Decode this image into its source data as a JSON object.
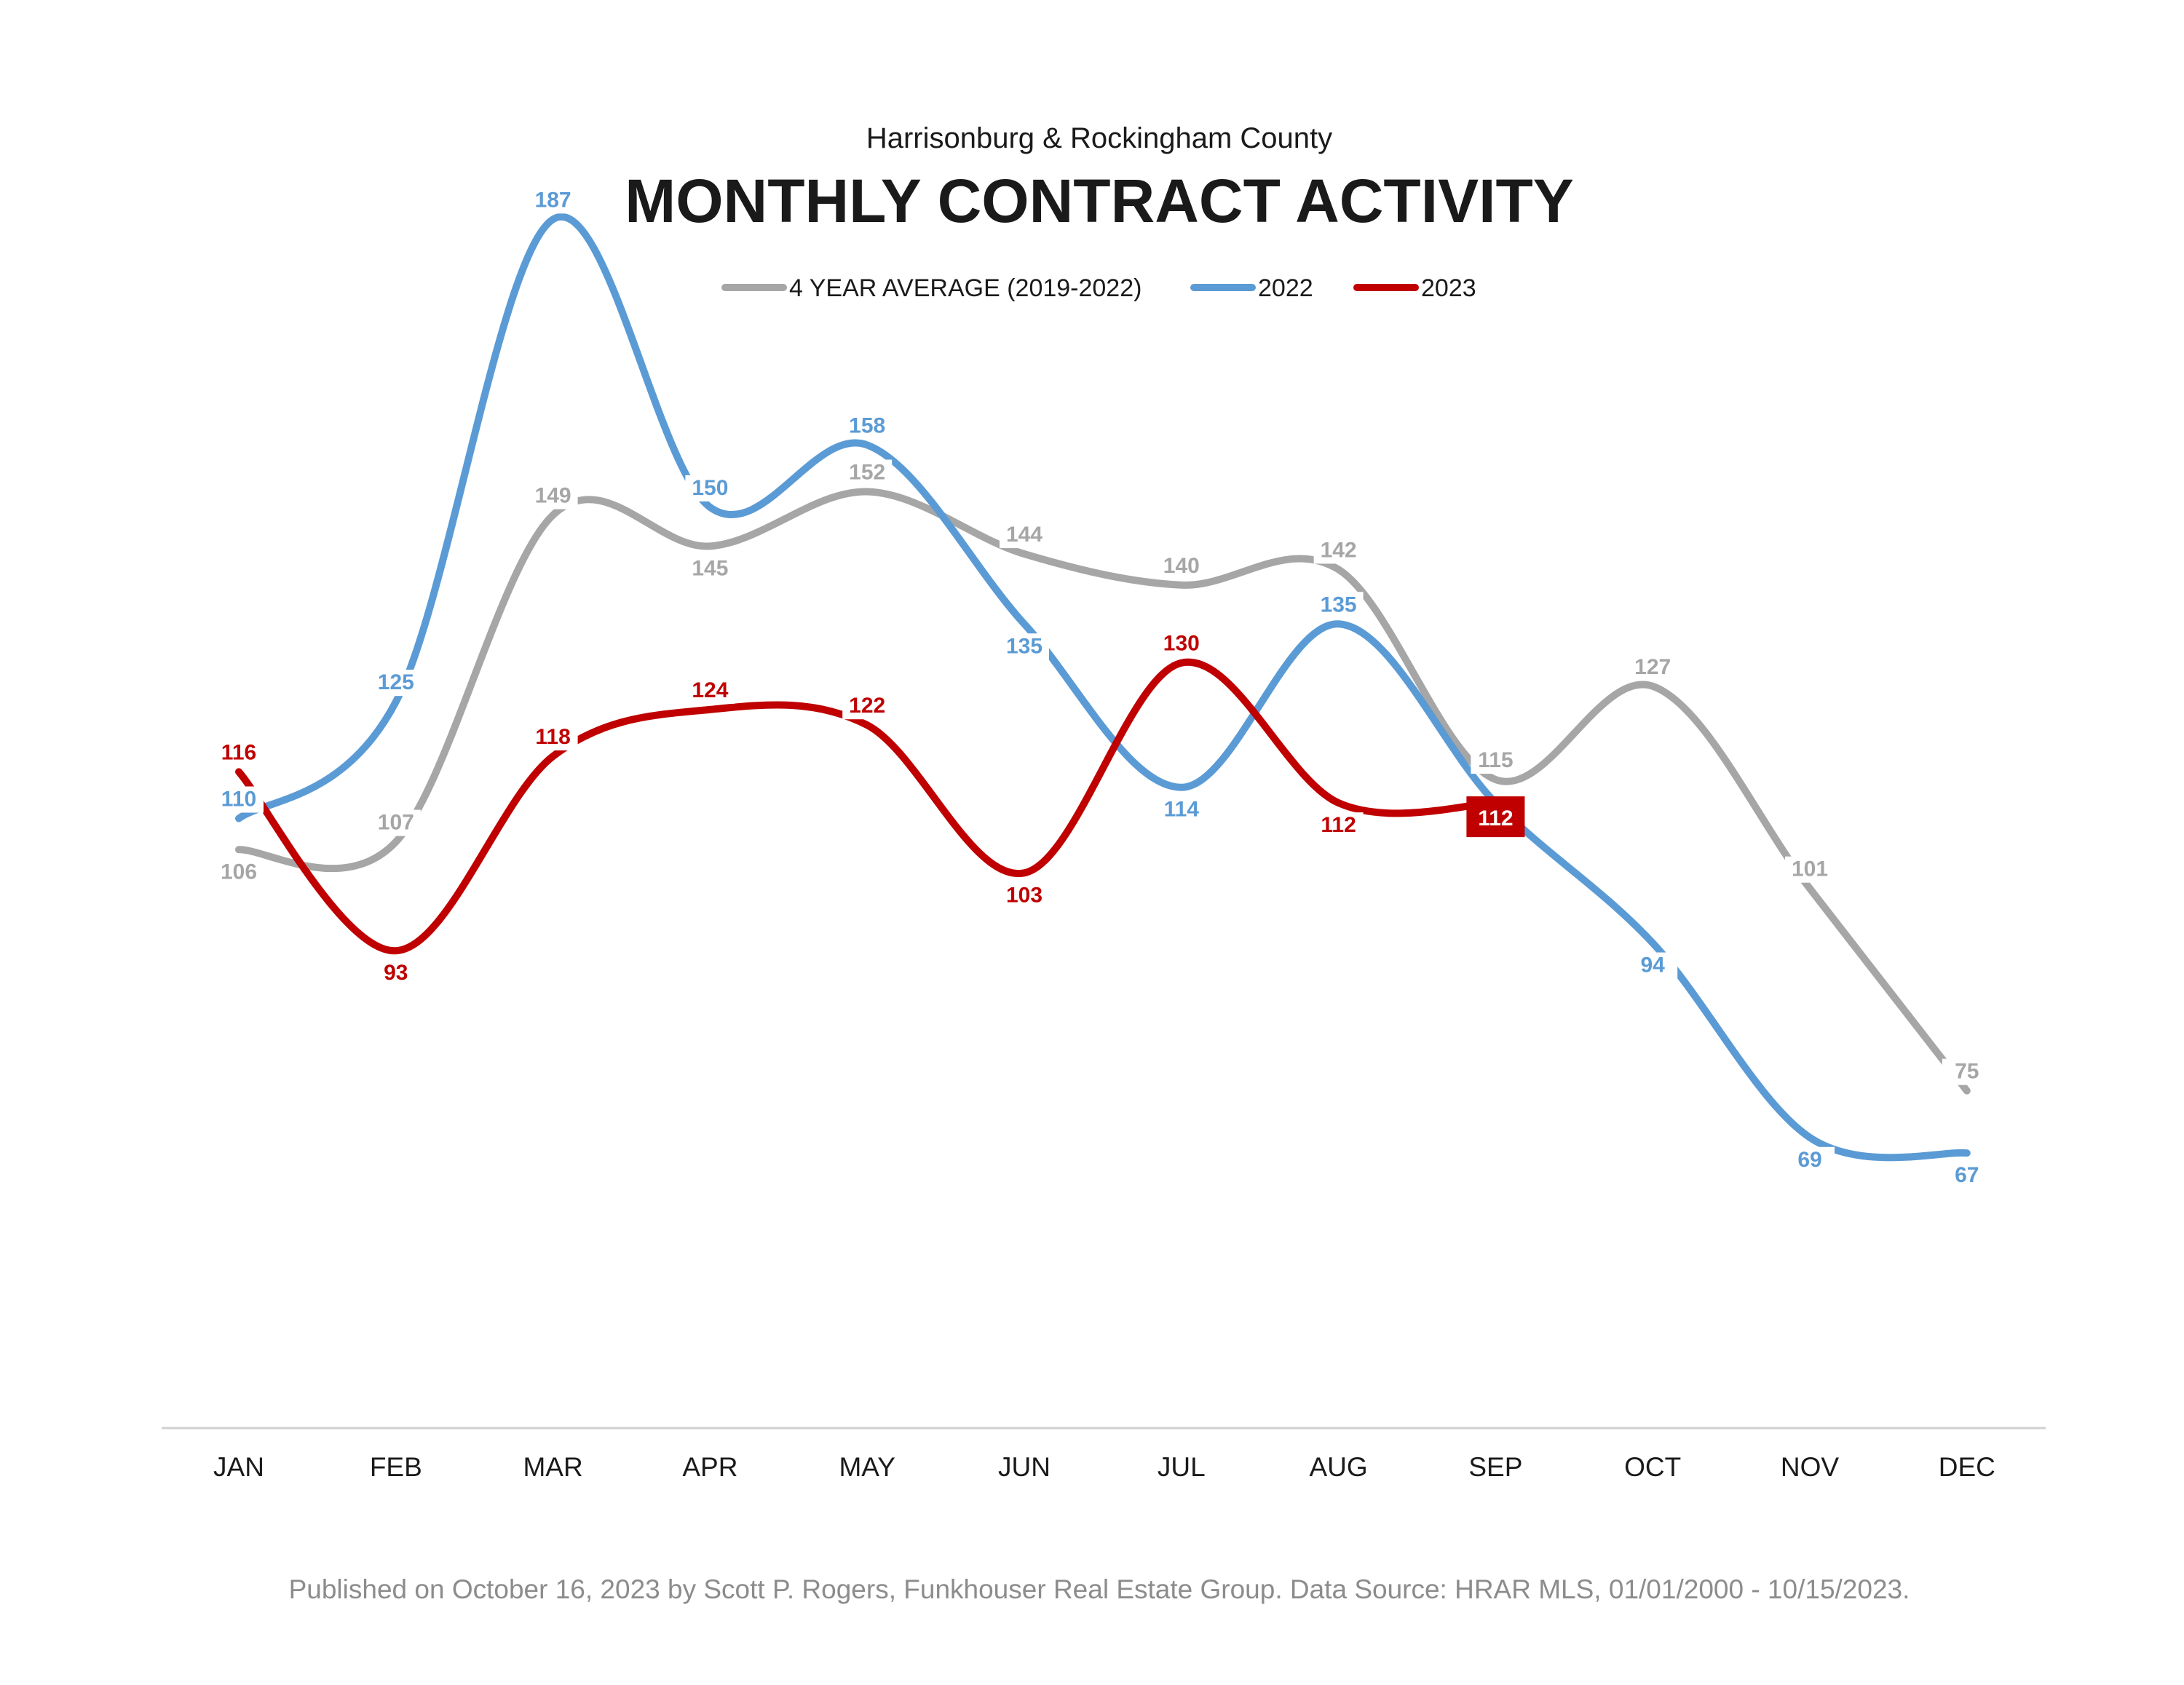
{
  "chart_data": {
    "type": "line",
    "subtitle": "Harrisonburg & Rockingham County",
    "title": "MONTHLY CONTRACT ACTIVITY",
    "legend_position": "top-center",
    "categories": [
      "JAN",
      "FEB",
      "MAR",
      "APR",
      "MAY",
      "JUN",
      "JUL",
      "AUG",
      "SEP",
      "OCT",
      "NOV",
      "DEC"
    ],
    "ylim": [
      0,
      200
    ],
    "grid": false,
    "series": [
      {
        "name": "4 YEAR AVERAGE (2019-2022)",
        "color": "#a6a6a6",
        "values": [
          106,
          107,
          149,
          145,
          152,
          144,
          140,
          142,
          115,
          127,
          101,
          75
        ]
      },
      {
        "name": "2022",
        "color": "#5b9bd5",
        "values": [
          110,
          125,
          187,
          150,
          158,
          135,
          114,
          135,
          112,
          94,
          69,
          67
        ]
      },
      {
        "name": "2023",
        "color": "#c00000",
        "values": [
          116,
          93,
          118,
          124,
          122,
          103,
          130,
          112,
          112,
          null,
          null,
          null
        ]
      }
    ],
    "highlighted_label": {
      "series": "2023",
      "category": "SEP",
      "value": 112
    },
    "footer": "Published on October 16, 2023 by Scott P. Rogers, Funkhouser Real Estate Group. Data Source: HRAR MLS, 01/01/2000 - 10/15/2023."
  }
}
